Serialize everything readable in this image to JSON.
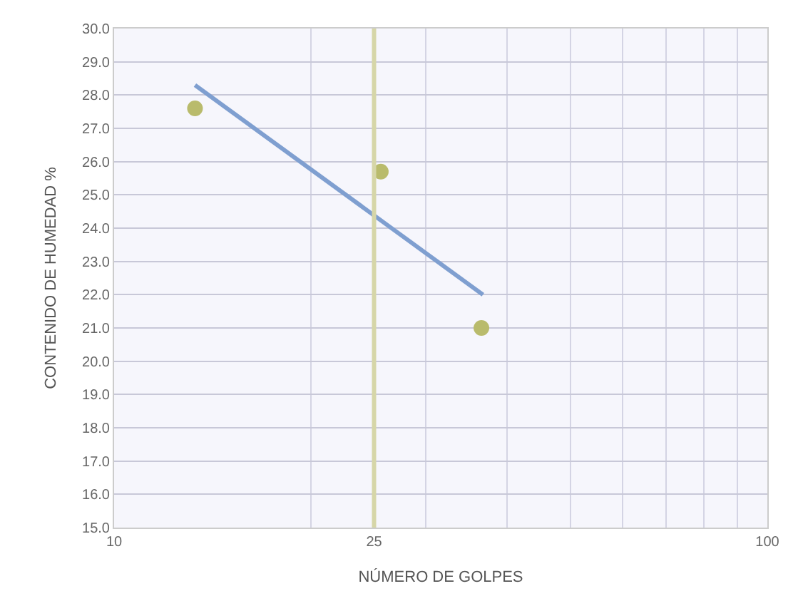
{
  "chart_data": {
    "type": "scatter",
    "xlabel": "NÚMERO DE GOLPES",
    "ylabel": "CONTENIDO DE HUMEDAD %",
    "log": "x",
    "grid": true,
    "marker": "circle",
    "xlim": [
      10,
      100
    ],
    "xticks": [
      10,
      {
        "value": 20,
        "label": null
      },
      25,
      {
        "value": 30,
        "label": null
      },
      {
        "value": 40,
        "label": null
      },
      {
        "value": 50,
        "label": null
      },
      {
        "value": 60,
        "label": null
      },
      {
        "value": 70,
        "label": null
      },
      {
        "value": 80,
        "label": null
      },
      {
        "value": 90,
        "label": null
      },
      100
    ],
    "ylim": [
      15,
      30
    ],
    "yticks": [
      {
        "value": 15,
        "label": "15.0"
      },
      {
        "value": 16,
        "label": "16.0"
      },
      {
        "value": 17,
        "label": "17.0"
      },
      {
        "value": 18,
        "label": "18.0"
      },
      {
        "value": 19,
        "label": "19.0"
      },
      {
        "value": 20,
        "label": "20.0"
      },
      {
        "value": 21,
        "label": "21.0"
      },
      {
        "value": 22,
        "label": "22.0"
      },
      {
        "value": 23,
        "label": "23.0"
      },
      {
        "value": 24,
        "label": "24.0"
      },
      {
        "value": 25,
        "label": "25.0"
      },
      {
        "value": 26,
        "label": "26.0"
      },
      {
        "value": 27,
        "label": "27.0"
      },
      {
        "value": 28,
        "label": "28.0"
      },
      {
        "value": 29,
        "label": "29.0"
      },
      {
        "value": 30,
        "label": "30.0"
      }
    ],
    "series": [
      {
        "color": "#b9bb6c",
        "x": [
          13.3,
          25.6,
          36.5
        ],
        "values": [
          27.6,
          25.7,
          21.0
        ]
      },
      {
        "type": "line",
        "color": "#7f9fd0",
        "x": [
          13.3,
          36.7
        ],
        "values": [
          28.3,
          22.0
        ],
        "marker": "none"
      }
    ],
    "ref_lines": [
      {
        "axis": "x",
        "value": 25,
        "label": null,
        "color": "#d6d6a8"
      }
    ]
  }
}
